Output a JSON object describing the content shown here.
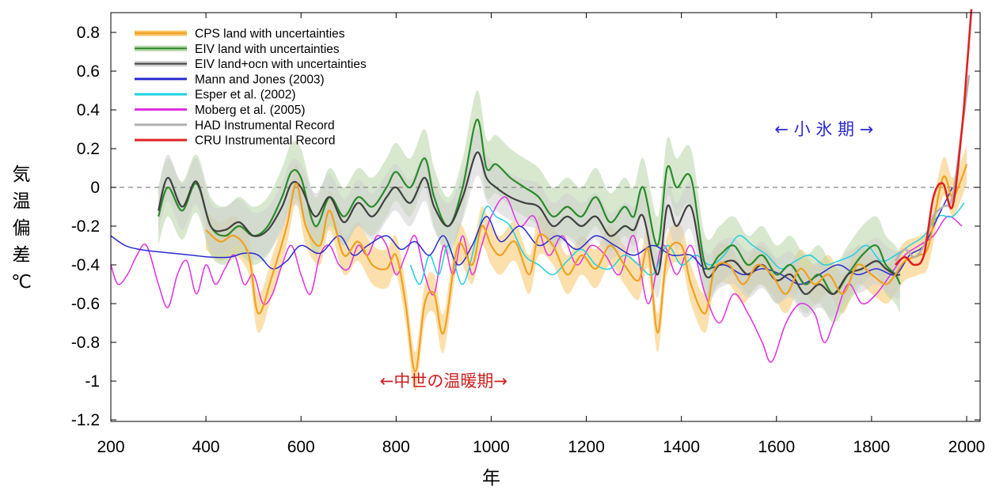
{
  "chart_data": {
    "type": "line",
    "title": "",
    "xlabel": "年",
    "ylabel": "気温偏差 ℃",
    "xlim": [
      200,
      2010
    ],
    "ylim": [
      -1.2,
      0.9
    ],
    "grid": false,
    "zero_line": "dashed",
    "legend_position": "top-left",
    "x_ticks": [
      "200",
      "400",
      "600",
      "800",
      "1000",
      "1200",
      "1400",
      "1600",
      "1800",
      "2000"
    ],
    "y_ticks": [
      "0.8",
      "0.6",
      "0.4",
      "0.2",
      "0",
      "-0.2",
      "-0.4",
      "-0.6",
      "-0.8",
      "-1",
      "-1.2"
    ],
    "annotations": [
      {
        "text": "←中世の温暖期→",
        "x": 900,
        "y": -1.0,
        "color": "#cc2020"
      },
      {
        "text": "←   小 氷 期   →",
        "x": 1700,
        "y": 0.3,
        "color": "#2a2ad0"
      }
    ],
    "series": [
      {
        "name": "CPS land with uncertainties",
        "color": "#f0a020",
        "band_color": "#f7c66a",
        "band_width": 0.1,
        "x": [
          400,
          430,
          460,
          490,
          510,
          540,
          570,
          590,
          610,
          640,
          660,
          690,
          720,
          750,
          780,
          800,
          820,
          840,
          860,
          880,
          900,
          930,
          960,
          980,
          1000,
          1020,
          1050,
          1080,
          1100,
          1130,
          1160,
          1190,
          1220,
          1250,
          1280,
          1310,
          1330,
          1350,
          1370,
          1400,
          1420,
          1450,
          1470,
          1500,
          1530,
          1560,
          1590,
          1620,
          1650,
          1680,
          1710,
          1740,
          1770,
          1800,
          1830,
          1850,
          1870,
          1900,
          1920,
          1950,
          1970,
          1990,
          2000
        ],
        "y": [
          -0.22,
          -0.28,
          -0.25,
          -0.35,
          -0.65,
          -0.45,
          -0.2,
          0.02,
          -0.2,
          -0.3,
          -0.12,
          -0.35,
          -0.28,
          -0.4,
          -0.42,
          -0.35,
          -0.6,
          -0.95,
          -0.6,
          -0.55,
          -0.75,
          -0.3,
          -0.4,
          -0.2,
          -0.3,
          -0.35,
          -0.28,
          -0.45,
          -0.25,
          -0.3,
          -0.45,
          -0.35,
          -0.42,
          -0.3,
          -0.4,
          -0.48,
          -0.32,
          -0.75,
          -0.35,
          -0.3,
          -0.5,
          -0.65,
          -0.42,
          -0.4,
          -0.5,
          -0.4,
          -0.45,
          -0.55,
          -0.42,
          -0.5,
          -0.45,
          -0.55,
          -0.4,
          -0.45,
          -0.5,
          -0.45,
          -0.38,
          -0.35,
          -0.3,
          0.05,
          -0.05,
          0.05,
          0.12
        ]
      },
      {
        "name": "EIV land with uncertainties",
        "color": "#2a8a2a",
        "band_color": "#b8d6a8",
        "band_width": 0.15,
        "x": [
          300,
          320,
          350,
          380,
          410,
          440,
          470,
          500,
          530,
          560,
          580,
          600,
          630,
          660,
          690,
          720,
          750,
          780,
          800,
          830,
          860,
          880,
          910,
          940,
          970,
          990,
          1010,
          1040,
          1070,
          1100,
          1130,
          1160,
          1190,
          1220,
          1250,
          1280,
          1300,
          1320,
          1350,
          1370,
          1390,
          1420,
          1450,
          1480,
          1510,
          1540,
          1570,
          1600,
          1630,
          1660,
          1690,
          1720,
          1750,
          1780,
          1810,
          1830,
          1850,
          1860
        ],
        "y": [
          -0.15,
          0.0,
          -0.12,
          0.02,
          -0.2,
          -0.25,
          -0.2,
          -0.25,
          -0.2,
          -0.05,
          0.08,
          0.05,
          -0.2,
          -0.05,
          -0.15,
          -0.05,
          -0.1,
          0.0,
          0.08,
          0.0,
          0.15,
          -0.05,
          -0.2,
          0.0,
          0.35,
          0.1,
          0.12,
          0.05,
          0.0,
          -0.05,
          -0.15,
          -0.1,
          -0.15,
          -0.05,
          -0.18,
          -0.1,
          -0.15,
          0.0,
          -0.3,
          0.1,
          0.0,
          0.05,
          -0.4,
          -0.35,
          -0.3,
          -0.4,
          -0.35,
          -0.45,
          -0.4,
          -0.5,
          -0.45,
          -0.55,
          -0.45,
          -0.35,
          -0.3,
          -0.4,
          -0.45,
          -0.5
        ]
      },
      {
        "name": "EIV land+ocn with uncertainties",
        "color": "#404040",
        "band_color": "#d0d0d0",
        "band_width": 0.12,
        "x": [
          300,
          320,
          350,
          380,
          410,
          440,
          470,
          500,
          530,
          560,
          580,
          600,
          630,
          660,
          690,
          720,
          750,
          780,
          800,
          830,
          860,
          880,
          910,
          940,
          970,
          990,
          1010,
          1040,
          1070,
          1100,
          1130,
          1160,
          1190,
          1220,
          1250,
          1280,
          1300,
          1320,
          1350,
          1370,
          1390,
          1420,
          1450,
          1480,
          1510,
          1540,
          1570,
          1600,
          1630,
          1660,
          1690,
          1720,
          1750,
          1780,
          1810,
          1830,
          1850,
          1860
        ],
        "y": [
          -0.12,
          0.05,
          -0.1,
          0.03,
          -0.2,
          -0.22,
          -0.18,
          -0.25,
          -0.22,
          -0.1,
          0.02,
          0.0,
          -0.15,
          -0.05,
          -0.18,
          -0.08,
          -0.15,
          -0.05,
          0.0,
          -0.08,
          0.05,
          -0.1,
          -0.2,
          -0.05,
          0.18,
          0.05,
          0.0,
          -0.05,
          -0.08,
          -0.1,
          -0.2,
          -0.15,
          -0.2,
          -0.15,
          -0.25,
          -0.2,
          -0.22,
          -0.15,
          -0.45,
          -0.1,
          -0.2,
          -0.1,
          -0.45,
          -0.4,
          -0.38,
          -0.45,
          -0.4,
          -0.48,
          -0.45,
          -0.55,
          -0.5,
          -0.55,
          -0.45,
          -0.42,
          -0.38,
          -0.42,
          -0.45,
          -0.45
        ]
      },
      {
        "name": "Mann and Jones (2003)",
        "color": "#2a2ad0",
        "x": [
          200,
          230,
          260,
          290,
          330,
          370,
          410,
          450,
          480,
          510,
          540,
          570,
          600,
          640,
          680,
          710,
          740,
          780,
          810,
          840,
          870,
          900,
          930,
          960,
          990,
          1020,
          1060,
          1100,
          1140,
          1180,
          1220,
          1260,
          1300,
          1340,
          1380,
          1420,
          1450,
          1490,
          1530,
          1570,
          1610,
          1650,
          1690,
          1730,
          1770,
          1810,
          1850,
          1880,
          1910,
          1940,
          1970
        ],
        "y": [
          -0.25,
          -0.3,
          -0.32,
          -0.33,
          -0.34,
          -0.35,
          -0.36,
          -0.36,
          -0.34,
          -0.35,
          -0.42,
          -0.38,
          -0.3,
          -0.34,
          -0.25,
          -0.35,
          -0.3,
          -0.25,
          -0.32,
          -0.28,
          -0.35,
          -0.25,
          -0.4,
          -0.3,
          -0.15,
          -0.28,
          -0.2,
          -0.3,
          -0.25,
          -0.32,
          -0.25,
          -0.3,
          -0.35,
          -0.3,
          -0.35,
          -0.35,
          -0.42,
          -0.4,
          -0.45,
          -0.42,
          -0.45,
          -0.5,
          -0.45,
          -0.4,
          -0.45,
          -0.42,
          -0.45,
          -0.35,
          -0.3,
          -0.15,
          0.0
        ]
      },
      {
        "name": "Esper et al. (2002)",
        "color": "#20d0e0",
        "x": [
          830,
          850,
          870,
          890,
          910,
          940,
          970,
          990,
          1010,
          1040,
          1070,
          1100,
          1130,
          1160,
          1190,
          1220,
          1250,
          1280,
          1310,
          1340,
          1370,
          1400,
          1430,
          1460,
          1490,
          1520,
          1550,
          1580,
          1610,
          1640,
          1670,
          1700,
          1730,
          1760,
          1790,
          1820,
          1850,
          1880,
          1910,
          1940,
          1970,
          1995
        ],
        "y": [
          -0.4,
          -0.5,
          -0.35,
          -0.45,
          -0.3,
          -0.5,
          -0.25,
          -0.1,
          -0.15,
          -0.2,
          -0.35,
          -0.4,
          -0.45,
          -0.38,
          -0.32,
          -0.4,
          -0.42,
          -0.35,
          -0.4,
          -0.45,
          -0.3,
          -0.4,
          -0.35,
          -0.4,
          -0.35,
          -0.25,
          -0.3,
          -0.35,
          -0.42,
          -0.38,
          -0.35,
          -0.4,
          -0.38,
          -0.35,
          -0.3,
          -0.38,
          -0.35,
          -0.3,
          -0.25,
          -0.15,
          -0.15,
          -0.08
        ]
      },
      {
        "name": "Moberg et al. (2005)",
        "color": "#e030e0",
        "x": [
          200,
          215,
          235,
          255,
          275,
          300,
          320,
          340,
          360,
          380,
          400,
          420,
          440,
          460,
          480,
          500,
          520,
          540,
          560,
          580,
          600,
          620,
          640,
          660,
          680,
          700,
          720,
          740,
          760,
          780,
          800,
          820,
          840,
          860,
          880,
          900,
          920,
          940,
          960,
          980,
          1000,
          1030,
          1060,
          1090,
          1120,
          1150,
          1180,
          1210,
          1240,
          1270,
          1300,
          1330,
          1360,
          1390,
          1420,
          1450,
          1480,
          1510,
          1540,
          1570,
          1590,
          1620,
          1650,
          1680,
          1700,
          1720,
          1750,
          1780,
          1810,
          1840,
          1870,
          1900,
          1930,
          1960,
          1990
        ],
        "y": [
          -0.4,
          -0.5,
          -0.45,
          -0.35,
          -0.3,
          -0.5,
          -0.62,
          -0.45,
          -0.38,
          -0.55,
          -0.4,
          -0.5,
          -0.42,
          -0.35,
          -0.5,
          -0.45,
          -0.6,
          -0.55,
          -0.4,
          -0.3,
          -0.45,
          -0.55,
          -0.35,
          -0.3,
          -0.4,
          -0.42,
          -0.3,
          -0.35,
          -0.25,
          -0.3,
          -0.45,
          -0.35,
          -0.25,
          -0.45,
          -0.55,
          -0.3,
          -0.45,
          -0.25,
          -0.45,
          -0.3,
          -0.15,
          -0.05,
          -0.2,
          -0.15,
          -0.35,
          -0.25,
          -0.4,
          -0.3,
          -0.35,
          -0.45,
          -0.25,
          -0.6,
          -0.3,
          -0.45,
          -0.3,
          -0.55,
          -0.7,
          -0.55,
          -0.65,
          -0.8,
          -0.9,
          -0.7,
          -0.6,
          -0.65,
          -0.8,
          -0.7,
          -0.5,
          -0.6,
          -0.55,
          -0.45,
          -0.35,
          -0.3,
          -0.25,
          -0.15,
          -0.2
        ]
      },
      {
        "name": "HAD Instrumental Record",
        "color": "#b0b0b0",
        "x": [
          1850,
          1870,
          1890,
          1910,
          1930,
          1950,
          1970,
          1990,
          2005
        ],
        "y": [
          -0.38,
          -0.32,
          -0.36,
          -0.3,
          -0.15,
          -0.1,
          -0.05,
          0.3,
          0.58
        ]
      },
      {
        "name": "CRU Instrumental Record",
        "color": "#e02020",
        "x": [
          1850,
          1870,
          1890,
          1910,
          1930,
          1950,
          1970,
          1990,
          2000,
          2010
        ],
        "y": [
          -0.4,
          -0.36,
          -0.4,
          -0.35,
          -0.05,
          0.02,
          -0.1,
          0.3,
          0.6,
          0.92
        ]
      }
    ]
  }
}
